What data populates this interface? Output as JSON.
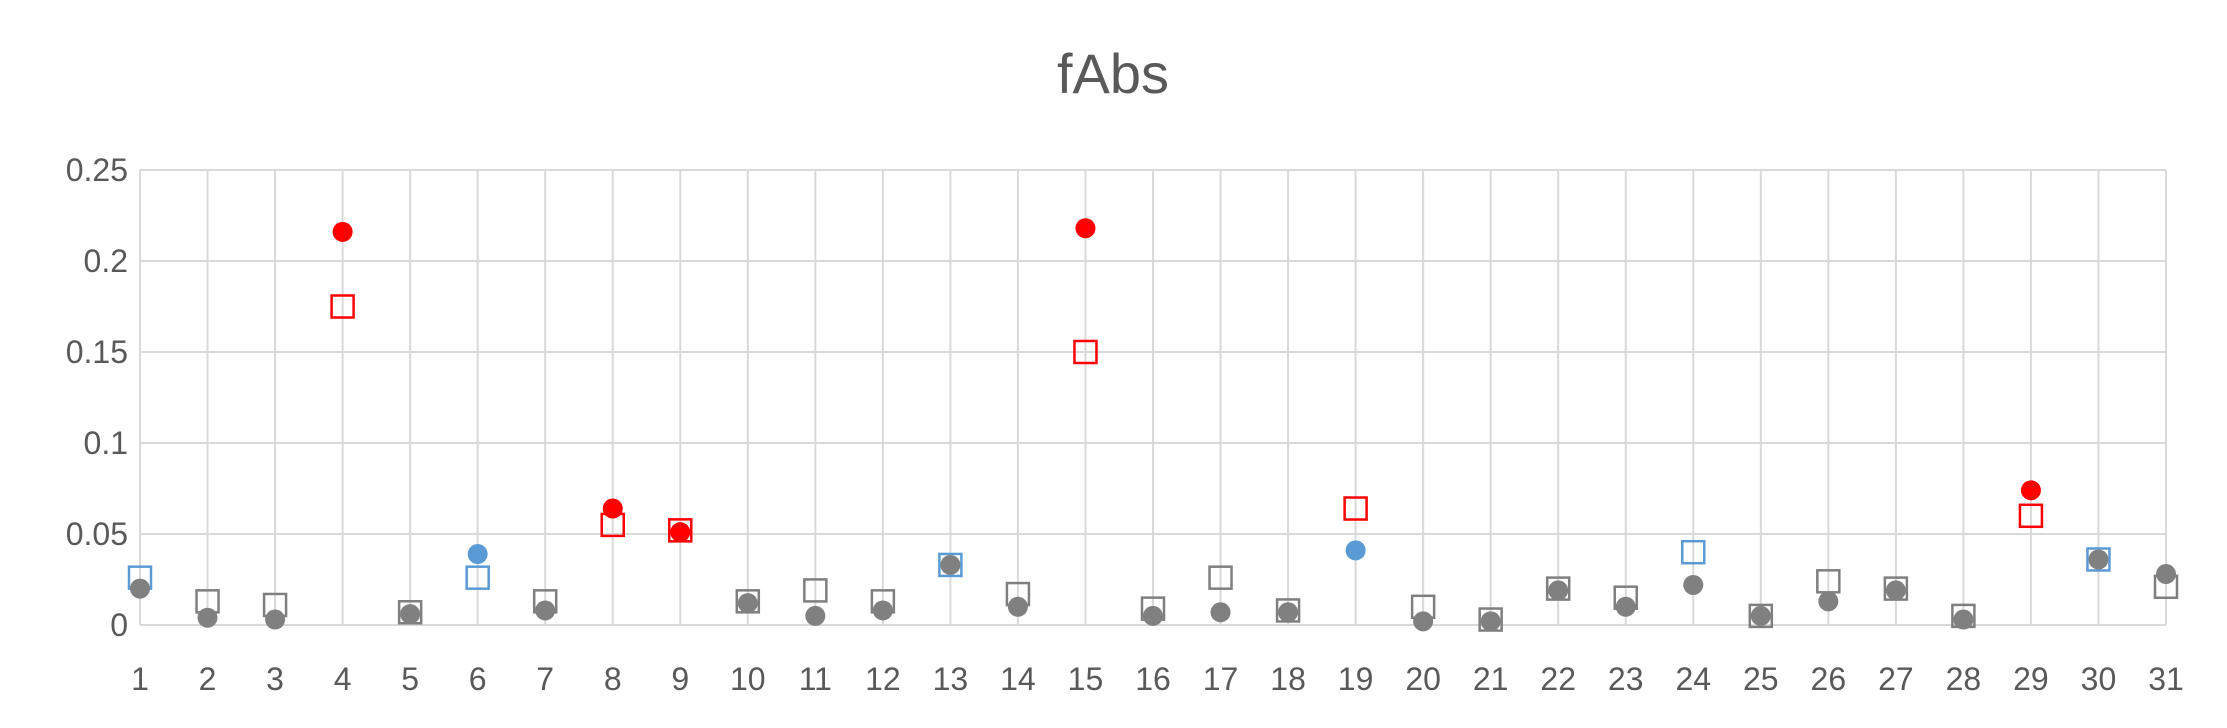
{
  "chart_data": {
    "type": "scatter",
    "title": "fAbs",
    "xlabel": "",
    "ylabel": "",
    "x": [
      1,
      2,
      3,
      4,
      5,
      6,
      7,
      8,
      9,
      10,
      11,
      12,
      13,
      14,
      15,
      16,
      17,
      18,
      19,
      20,
      21,
      22,
      23,
      24,
      25,
      26,
      27,
      28,
      29,
      30,
      31
    ],
    "xlim": [
      1,
      31
    ],
    "ylim": [
      0,
      0.25
    ],
    "yticks": [
      0,
      0.05,
      0.1,
      0.15,
      0.2,
      0.25
    ],
    "ytick_labels": [
      "0",
      "0.05",
      "0.1",
      "0.15",
      "0.2",
      "0.25"
    ],
    "grid": true,
    "legend": "none",
    "series": [
      {
        "marker": "hollow-square",
        "values": [
          0.026,
          0.013,
          0.011,
          0.175,
          0.007,
          0.026,
          0.013,
          0.055,
          0.052,
          0.013,
          0.019,
          0.013,
          0.033,
          0.017,
          0.15,
          0.009,
          0.026,
          0.008,
          0.064,
          0.01,
          0.003,
          0.02,
          0.015,
          0.04,
          0.005,
          0.024,
          0.02,
          0.005,
          0.06,
          0.036,
          0.021
        ],
        "colors": [
          "#5b9bd5",
          "#7f7f7f",
          "#7f7f7f",
          "#ff0000",
          "#7f7f7f",
          "#5b9bd5",
          "#7f7f7f",
          "#ff0000",
          "#ff0000",
          "#7f7f7f",
          "#7f7f7f",
          "#7f7f7f",
          "#5b9bd5",
          "#7f7f7f",
          "#ff0000",
          "#7f7f7f",
          "#7f7f7f",
          "#7f7f7f",
          "#ff0000",
          "#7f7f7f",
          "#7f7f7f",
          "#7f7f7f",
          "#7f7f7f",
          "#5b9bd5",
          "#7f7f7f",
          "#7f7f7f",
          "#7f7f7f",
          "#7f7f7f",
          "#ff0000",
          "#5b9bd5",
          "#7f7f7f"
        ]
      },
      {
        "marker": "filled-circle",
        "values": [
          0.02,
          0.004,
          0.003,
          0.216,
          0.006,
          0.039,
          0.008,
          0.064,
          0.051,
          0.012,
          0.005,
          0.008,
          0.033,
          0.01,
          0.218,
          0.005,
          0.007,
          0.007,
          0.041,
          0.002,
          0.002,
          0.019,
          0.01,
          0.022,
          0.005,
          0.013,
          0.019,
          0.003,
          0.074,
          0.036,
          0.028
        ],
        "colors": [
          "#808080",
          "#808080",
          "#808080",
          "#ff0000",
          "#808080",
          "#5b9bd5",
          "#808080",
          "#ff0000",
          "#ff0000",
          "#808080",
          "#808080",
          "#808080",
          "#808080",
          "#808080",
          "#ff0000",
          "#808080",
          "#808080",
          "#808080",
          "#5b9bd5",
          "#808080",
          "#808080",
          "#808080",
          "#808080",
          "#808080",
          "#808080",
          "#808080",
          "#808080",
          "#808080",
          "#ff0000",
          "#808080",
          "#808080"
        ]
      }
    ],
    "colors": {
      "highlight": "#ff0000",
      "blue": "#5b9bd5",
      "neutral_square": "#7f7f7f",
      "neutral_circle": "#808080",
      "text": "#595959",
      "grid": "#d9d9d9"
    }
  }
}
